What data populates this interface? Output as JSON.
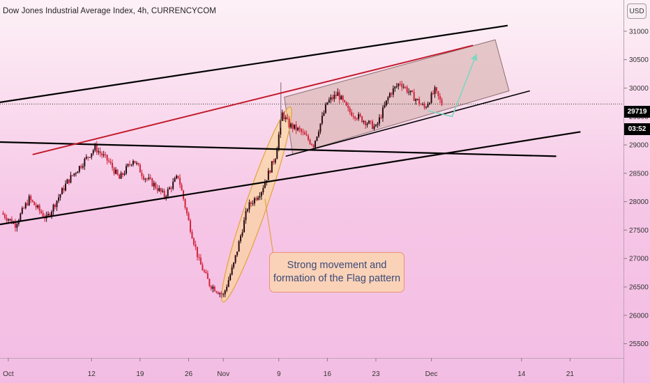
{
  "header": {
    "title": "Dow Jones Industrial Average Index, 4h, CURRENCYCOM"
  },
  "price_axis": {
    "currency_button": "USD",
    "current_price_label": "29719",
    "countdown_label": "03:52"
  },
  "annotation": {
    "line1": "Strong movement and",
    "line2": "formation of the Flag pattern"
  },
  "colors": {
    "up_candle": "#2a0a10",
    "down_candle": "#d2233a",
    "trend_line": "#000000",
    "flag_top_line": "#c2182b",
    "flag_box": "#d9b4b0",
    "projection": "#7fd6c2",
    "ellipse_fill": "#fbd98a",
    "price_tag": "#000000"
  },
  "chart_data": {
    "type": "candlestick",
    "title": "Dow Jones Industrial Average Index, 4h, CURRENCYCOM",
    "y_ticks": [
      25500,
      26000,
      26500,
      27000,
      27500,
      28000,
      28500,
      29000,
      29500,
      30000,
      30500,
      31000
    ],
    "ylim": [
      25250,
      31550
    ],
    "x_ticks": [
      {
        "label": "Oct",
        "day": 0
      },
      {
        "label": "12",
        "day": 12
      },
      {
        "label": "19",
        "day": 19
      },
      {
        "label": "26",
        "day": 26
      },
      {
        "label": "Nov",
        "day": 31
      },
      {
        "label": "9",
        "day": 39
      },
      {
        "label": "16",
        "day": 46
      },
      {
        "label": "23",
        "day": 53
      },
      {
        "label": "Dec",
        "day": 61
      },
      {
        "label": "14",
        "day": 74
      },
      {
        "label": "21",
        "day": 81
      }
    ],
    "xlim": [
      -1.2,
      88.7
    ],
    "last_price": 29719,
    "price_path": [
      {
        "day": -1.0,
        "price": 27800
      },
      {
        "day": 1.0,
        "price": 27600
      },
      {
        "day": 3.0,
        "price": 28050
      },
      {
        "day": 5.5,
        "price": 27700
      },
      {
        "day": 8.5,
        "price": 28350
      },
      {
        "day": 10.5,
        "price": 28650
      },
      {
        "day": 12.5,
        "price": 28950
      },
      {
        "day": 14.5,
        "price": 28700
      },
      {
        "day": 16.0,
        "price": 28400
      },
      {
        "day": 18.0,
        "price": 28750
      },
      {
        "day": 19.5,
        "price": 28450
      },
      {
        "day": 21.0,
        "price": 28300
      },
      {
        "day": 22.5,
        "price": 28100
      },
      {
        "day": 24.5,
        "price": 28450
      },
      {
        "day": 26.0,
        "price": 27650
      },
      {
        "day": 27.5,
        "price": 26950
      },
      {
        "day": 29.0,
        "price": 26550
      },
      {
        "day": 31.0,
        "price": 26350
      },
      {
        "day": 32.5,
        "price": 26900
      },
      {
        "day": 34.5,
        "price": 27900
      },
      {
        "day": 36.5,
        "price": 28200
      },
      {
        "day": 38.5,
        "price": 28800
      },
      {
        "day": 39.5,
        "price": 29550
      },
      {
        "day": 40.5,
        "price": 29350
      },
      {
        "day": 42.0,
        "price": 29250
      },
      {
        "day": 44.0,
        "price": 29000
      },
      {
        "day": 46.0,
        "price": 29750
      },
      {
        "day": 47.5,
        "price": 29900
      },
      {
        "day": 49.0,
        "price": 29600
      },
      {
        "day": 51.0,
        "price": 29450
      },
      {
        "day": 53.0,
        "price": 29300
      },
      {
        "day": 55.0,
        "price": 29900
      },
      {
        "day": 56.5,
        "price": 30100
      },
      {
        "day": 58.0,
        "price": 29900
      },
      {
        "day": 60.0,
        "price": 29650
      },
      {
        "day": 61.5,
        "price": 29950
      },
      {
        "day": 62.5,
        "price": 29719
      }
    ],
    "trend_lines": [
      {
        "name": "upper-resistance",
        "from": {
          "day": -1.2,
          "price": 29750
        },
        "to": {
          "day": 72.0,
          "price": 31100
        }
      },
      {
        "name": "horizontal-support",
        "from": {
          "day": -1.2,
          "price": 29050
        },
        "to": {
          "day": 79.0,
          "price": 28800
        }
      },
      {
        "name": "rising-support",
        "from": {
          "day": -1.2,
          "price": 27600
        },
        "to": {
          "day": 82.5,
          "price": 29230
        }
      },
      {
        "name": "flag-bottom",
        "from": {
          "day": 40.0,
          "price": 28800
        },
        "to": {
          "day": 75.2,
          "price": 29950
        }
      }
    ],
    "flag_top_line": {
      "from": {
        "day": 3.5,
        "price": 28830
      },
      "to": {
        "day": 67.0,
        "price": 30750
      }
    },
    "flag_box": [
      {
        "day": 39.8,
        "price": 29840
      },
      {
        "day": 70.2,
        "price": 30850
      },
      {
        "day": 72.2,
        "price": 29950
      },
      {
        "day": 41.0,
        "price": 28830
      }
    ],
    "projection": [
      {
        "day": 60.5,
        "price": 29600
      },
      {
        "day": 64.0,
        "price": 29500
      },
      {
        "day": 67.5,
        "price": 30600
      }
    ],
    "ellipse": {
      "center_day": 35.8,
      "center_price": 27950,
      "note": "Strong movement and formation of the Flag pattern"
    }
  }
}
